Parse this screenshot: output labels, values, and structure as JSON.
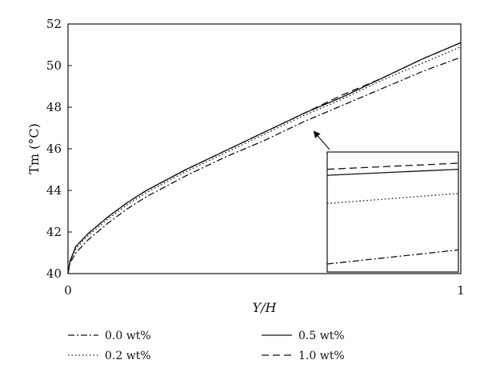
{
  "chart_data": {
    "type": "line",
    "xlabel": "Y/H",
    "ylabel": "Tm (°C)",
    "xlim": [
      0,
      1
    ],
    "ylim": [
      40,
      52
    ],
    "x_ticks": [
      0,
      1
    ],
    "x_tick_labels": [
      "0",
      "1"
    ],
    "y_ticks": [
      40,
      42,
      44,
      46,
      48,
      50,
      52
    ],
    "y_tick_labels": [
      "40",
      "42",
      "44",
      "46",
      "48",
      "50",
      "52"
    ],
    "grid": false,
    "legend_position": "bottom",
    "x": [
      0,
      0.005,
      0.02,
      0.05,
      0.1,
      0.15,
      0.2,
      0.3,
      0.4,
      0.5,
      0.6,
      0.7,
      0.8,
      0.9,
      1.0
    ],
    "series": [
      {
        "name": "0.0 wt%",
        "dash": "dash-dot",
        "values": [
          40.0,
          40.5,
          41.0,
          41.6,
          42.4,
          43.1,
          43.7,
          44.7,
          45.6,
          46.4,
          47.3,
          48.1,
          48.9,
          49.7,
          50.4
        ]
      },
      {
        "name": "0.2 wt%",
        "dash": "dotted",
        "values": [
          40.0,
          40.6,
          41.2,
          41.8,
          42.6,
          43.3,
          43.9,
          44.9,
          45.8,
          46.7,
          47.6,
          48.4,
          49.3,
          50.1,
          50.9
        ]
      },
      {
        "name": "0.5 wt%",
        "dash": "solid",
        "values": [
          40.0,
          40.6,
          41.3,
          41.9,
          42.7,
          43.4,
          44.0,
          45.0,
          45.9,
          46.8,
          47.7,
          48.5,
          49.4,
          50.3,
          51.1
        ]
      },
      {
        "name": "1.0 wt%",
        "dash": "dashed",
        "values": [
          40.0,
          40.6,
          41.3,
          41.9,
          42.7,
          43.4,
          44.0,
          45.0,
          45.9,
          46.8,
          47.7,
          48.6,
          49.4,
          50.3,
          51.1
        ]
      }
    ],
    "inset": {
      "type": "line",
      "description_values": "zoomed view of curve ends, relative order from top",
      "annotation_arrow": true,
      "series": [
        {
          "name": "1.0 wt%",
          "dash": "dashed",
          "values": [
            0.94,
            1.0
          ]
        },
        {
          "name": "0.5 wt%",
          "dash": "solid",
          "values": [
            0.88,
            0.94
          ]
        },
        {
          "name": "0.2 wt%",
          "dash": "dotted",
          "values": [
            0.6,
            0.7
          ]
        },
        {
          "name": "0.0 wt%",
          "dash": "dash-dot",
          "values": [
            0.0,
            0.14
          ]
        }
      ]
    }
  }
}
